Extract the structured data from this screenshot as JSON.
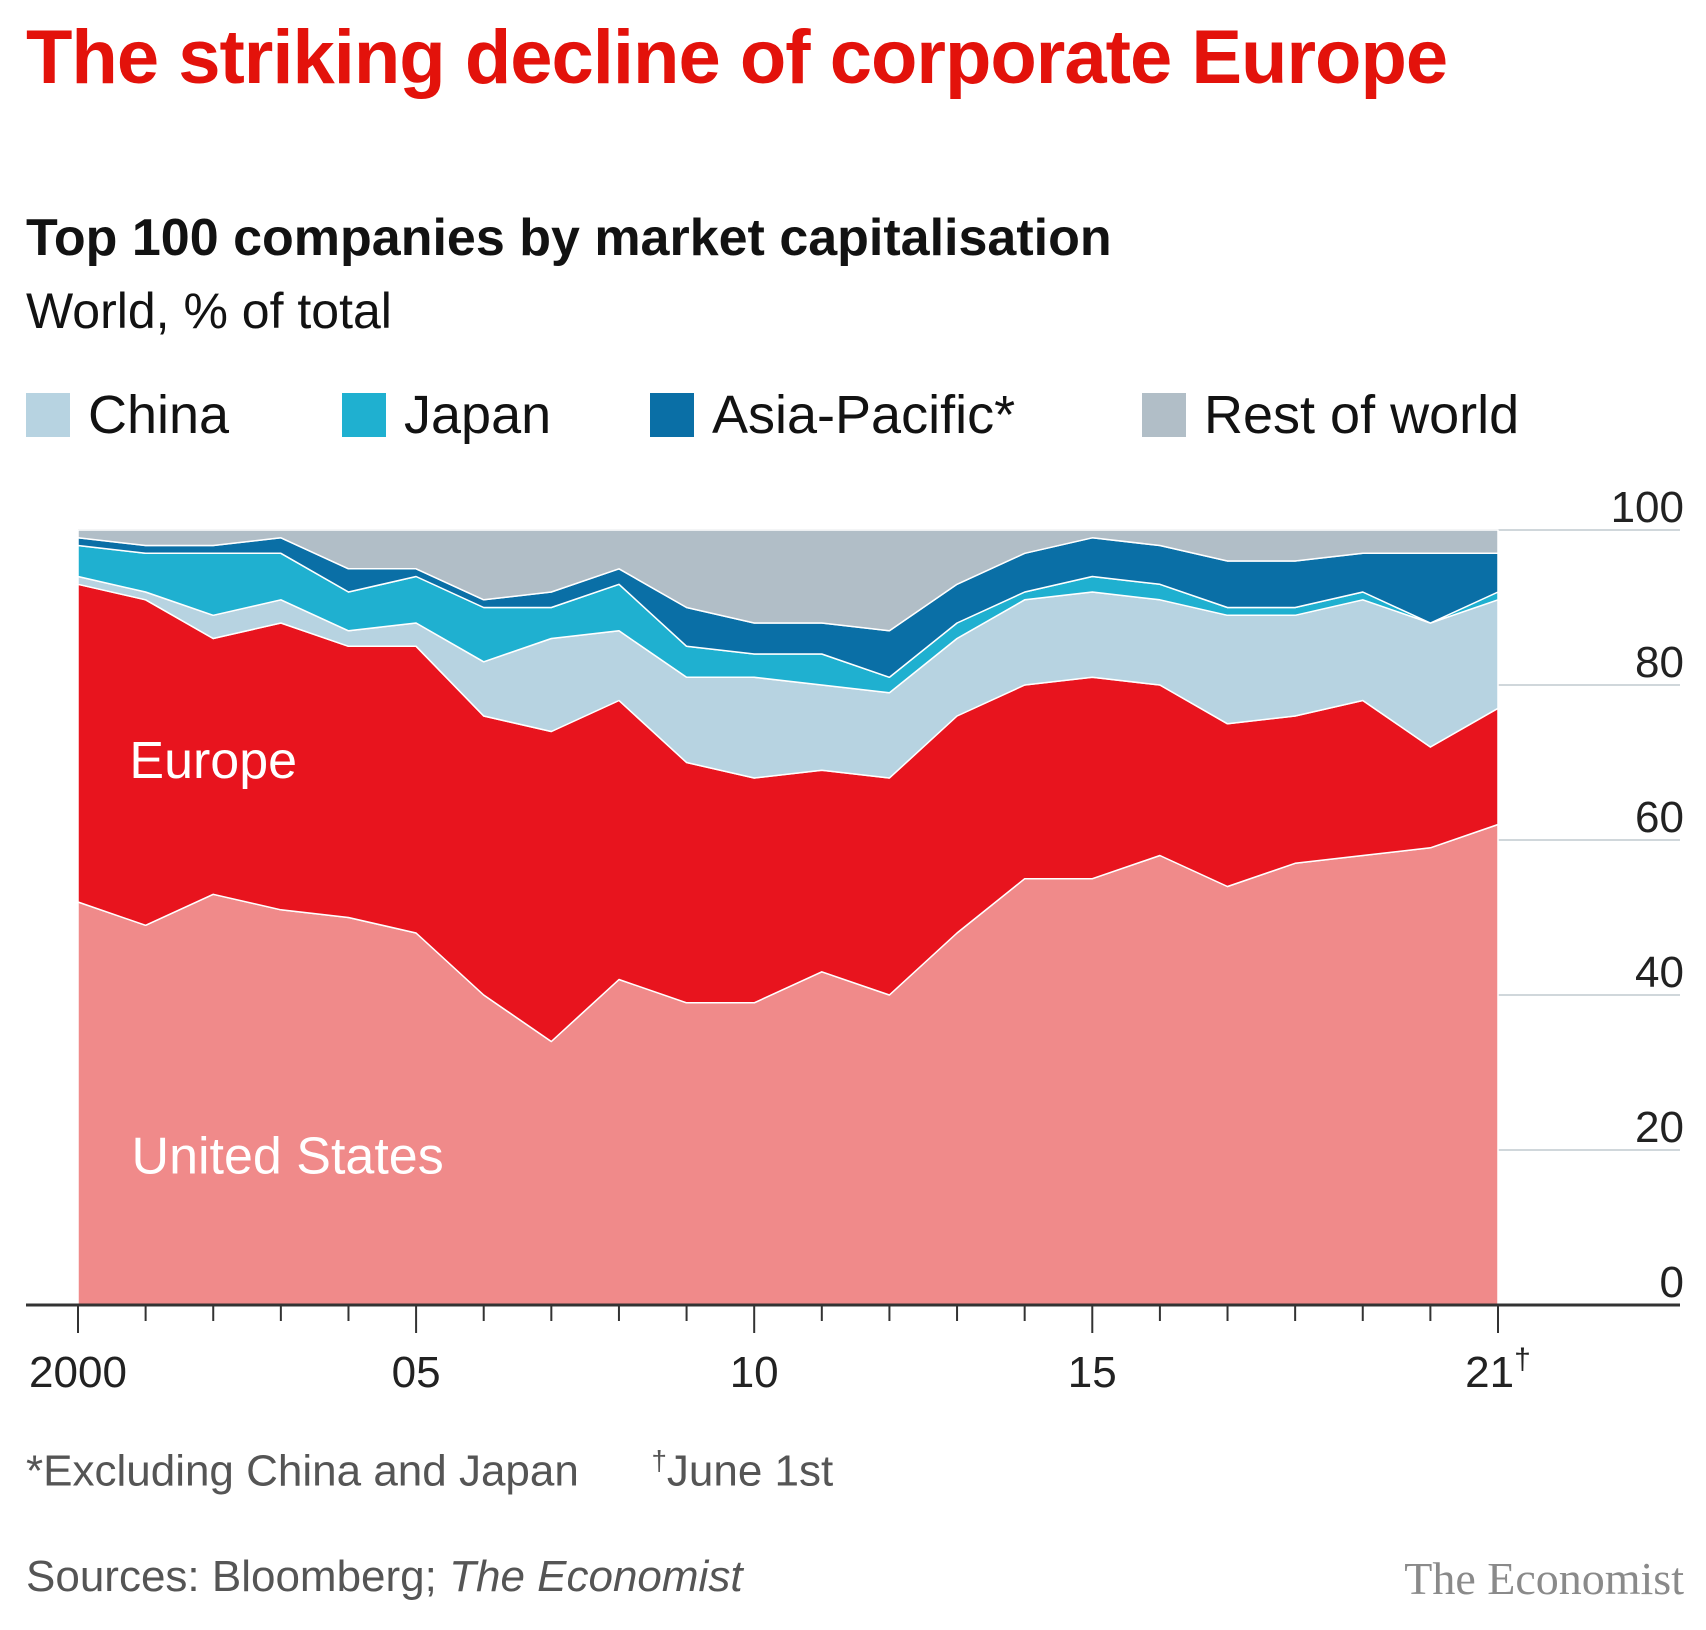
{
  "header": {
    "title": "The striking decline of corporate Europe",
    "subtitle": "Top 100 companies by market capitalisation",
    "unit": "World, % of total"
  },
  "legend": [
    {
      "label": "China",
      "color": "#b7d3e1"
    },
    {
      "label": "Japan",
      "color": "#1fb0d0"
    },
    {
      "label": "Asia-Pacific*",
      "color": "#0a6fa6"
    },
    {
      "label": "Rest of world",
      "color": "#b1bec7"
    }
  ],
  "footnotes": {
    "asterisk": "*Excluding China and Japan",
    "dagger_mark": "†",
    "dagger_text": "June 1st"
  },
  "source": {
    "prefix": "Sources: Bloomberg; ",
    "italic": "The Economist"
  },
  "brand": "The Economist",
  "chart_data": {
    "type": "area",
    "stacked": true,
    "x": [
      2000,
      2001,
      2002,
      2003,
      2004,
      2005,
      2006,
      2007,
      2008,
      2009,
      2010,
      2011,
      2012,
      2013,
      2014,
      2015,
      2016,
      2017,
      2018,
      2019,
      2020,
      2021
    ],
    "x_tick_labels": [
      {
        "x": 2000,
        "label": "2000"
      },
      {
        "x": 2005,
        "label": "05"
      },
      {
        "x": 2010,
        "label": "10"
      },
      {
        "x": 2015,
        "label": "15"
      },
      {
        "x": 2021,
        "label": "21",
        "sup": "†"
      }
    ],
    "ylim": [
      0,
      100
    ],
    "y_ticks": [
      0,
      20,
      40,
      60,
      80,
      100
    ],
    "series": [
      {
        "name": "United States",
        "color": "#f08a8a",
        "values": [
          52,
          49,
          53,
          51,
          50,
          48,
          40,
          34,
          42,
          39,
          39,
          43,
          40,
          48,
          55,
          55,
          58,
          54,
          57,
          58,
          59,
          62
        ]
      },
      {
        "name": "Europe",
        "color": "#e8141e",
        "values": [
          41,
          42,
          33,
          37,
          35,
          37,
          36,
          40,
          36,
          31,
          29,
          26,
          28,
          28,
          25,
          26,
          22,
          21,
          19,
          20,
          13,
          15
        ]
      },
      {
        "name": "China",
        "color": "#b7d3e1",
        "values": [
          1,
          1,
          3,
          3,
          2,
          3,
          7,
          12,
          9,
          11,
          13,
          11,
          11,
          10,
          11,
          11,
          11,
          14,
          13,
          13,
          16,
          14
        ]
      },
      {
        "name": "Japan",
        "color": "#1fb0d0",
        "values": [
          4,
          5,
          8,
          6,
          5,
          6,
          7,
          4,
          6,
          4,
          3,
          4,
          2,
          2,
          1,
          2,
          2,
          1,
          1,
          1,
          0,
          1
        ]
      },
      {
        "name": "Asia-Pacific*",
        "color": "#0a6fa6",
        "values": [
          1,
          1,
          1,
          2,
          3,
          1,
          1,
          2,
          2,
          5,
          4,
          4,
          6,
          5,
          5,
          5,
          5,
          6,
          6,
          5,
          9,
          5
        ]
      },
      {
        "name": "Rest of world",
        "color": "#b1bec7",
        "values": [
          1,
          2,
          2,
          1,
          5,
          5,
          9,
          8,
          5,
          10,
          12,
          12,
          13,
          7,
          3,
          1,
          2,
          4,
          4,
          3,
          3,
          3
        ]
      }
    ],
    "annotations": [
      {
        "text": "Europe",
        "x": 2002,
        "y": 68
      },
      {
        "text": "United States",
        "x": 2003.1,
        "y": 17
      }
    ]
  }
}
